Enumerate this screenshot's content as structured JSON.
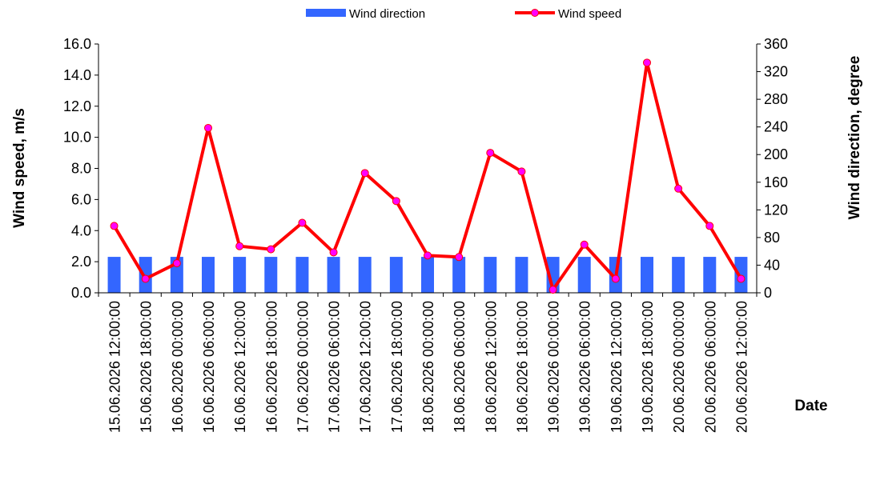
{
  "chart_data": {
    "type": "bar+line",
    "title": "",
    "xlabel": "Date",
    "ylabel_left": "Wind speed, m/s",
    "ylabel_right": "Wind direction, degree",
    "ylim_left": [
      0,
      16
    ],
    "ylim_right": [
      0,
      360
    ],
    "yticks_left": [
      "0.0",
      "2.0",
      "4.0",
      "6.0",
      "8.0",
      "10.0",
      "12.0",
      "14.0",
      "16.0"
    ],
    "yticks_right": [
      "0",
      "40",
      "80",
      "120",
      "160",
      "200",
      "240",
      "280",
      "320",
      "360"
    ],
    "grid": false,
    "legend_position": "top",
    "categories": [
      "15.06.2026 12:00:00",
      "15.06.2026 18:00:00",
      "16.06.2026 00:00:00",
      "16.06.2026 06:00:00",
      "16.06.2026 12:00:00",
      "16.06.2026 18:00:00",
      "17.06.2026 00:00:00",
      "17.06.2026 06:00:00",
      "17.06.2026 12:00:00",
      "17.06.2026 18:00:00",
      "18.06.2026 00:00:00",
      "18.06.2026 06:00:00",
      "18.06.2026 12:00:00",
      "18.06.2026 18:00:00",
      "19.06.2026 00:00:00",
      "19.06.2026 06:00:00",
      "19.06.2026 12:00:00",
      "19.06.2026 18:00:00",
      "20.06.2026 00:00:00",
      "20.06.2026 06:00:00",
      "20.06.2026 12:00:00"
    ],
    "series": [
      {
        "name": "Wind direction",
        "type": "bar",
        "axis": "right",
        "color": "#3366ff",
        "values": [
          52,
          52,
          52,
          52,
          52,
          52,
          52,
          52,
          52,
          52,
          52,
          52,
          52,
          52,
          52,
          52,
          52,
          52,
          52,
          52,
          52
        ]
      },
      {
        "name": "Wind speed",
        "type": "line",
        "axis": "left",
        "color": "#ff0000",
        "marker_color": "#ff00ff",
        "values": [
          4.3,
          0.9,
          1.9,
          10.6,
          3.0,
          2.8,
          4.5,
          2.6,
          7.7,
          5.9,
          2.4,
          2.3,
          9.0,
          7.8,
          0.2,
          3.1,
          0.9,
          14.8,
          6.7,
          4.3,
          0.9
        ]
      }
    ]
  }
}
